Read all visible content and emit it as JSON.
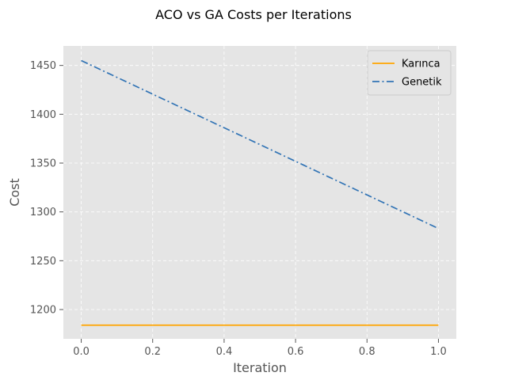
{
  "chart_data": {
    "type": "line",
    "title": "ACO vs GA Costs per Iterations",
    "xlabel": "Iteration",
    "ylabel": "Cost",
    "xlim": [
      -0.05,
      1.05
    ],
    "ylim": [
      1170,
      1470
    ],
    "xticks": [
      0.0,
      0.2,
      0.4,
      0.6,
      0.8,
      1.0
    ],
    "xtick_labels": [
      "0.0",
      "0.2",
      "0.4",
      "0.6",
      "0.8",
      "1.0"
    ],
    "yticks": [
      1200,
      1250,
      1300,
      1350,
      1400,
      1450
    ],
    "ytick_labels": [
      "1200",
      "1250",
      "1300",
      "1350",
      "1400",
      "1450"
    ],
    "grid": true,
    "legend_position": "top-right",
    "series": [
      {
        "name": "Karınca",
        "x": [
          0,
          1
        ],
        "y": [
          1184,
          1184
        ],
        "color": "#FFA500",
        "style": "solid"
      },
      {
        "name": "Genetik",
        "x": [
          0,
          1
        ],
        "y": [
          1455,
          1283
        ],
        "color": "#3274B5",
        "style": "dashdot"
      }
    ]
  },
  "colors": {
    "plot_background": "#E5E5E5",
    "grid": "#FFFFFF"
  }
}
